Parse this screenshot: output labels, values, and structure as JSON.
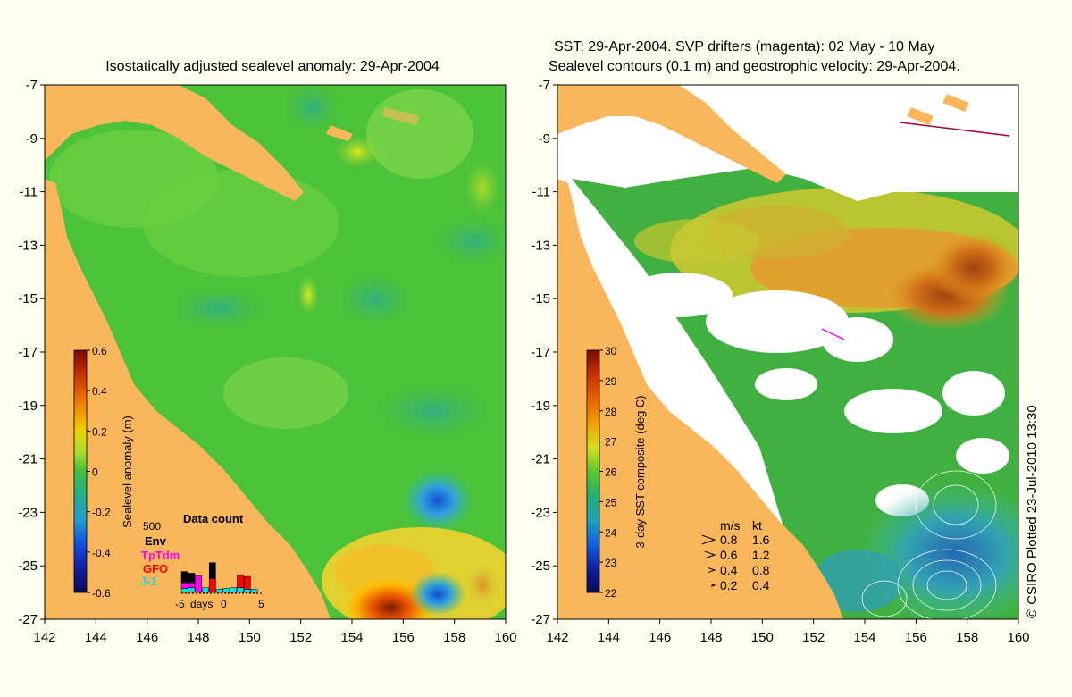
{
  "chart_data": [
    {
      "type": "heatmap",
      "title": "Isostatically adjusted sealevel anomaly: 29-Apr-2004",
      "x_ticks": [
        142,
        144,
        146,
        148,
        150,
        152,
        154,
        156,
        158,
        160
      ],
      "y_ticks": [
        -7,
        -9,
        -11,
        -13,
        -15,
        -17,
        -19,
        -21,
        -23,
        -25,
        -27
      ],
      "xlim": [
        142,
        160
      ],
      "ylim": [
        -27,
        -7
      ],
      "colorbar": {
        "label": "Sealevel anomaly (m)",
        "ticks": [
          "0.6",
          "0.4",
          "0.2",
          "0",
          "-0.2",
          "-0.4",
          "-0.6"
        ],
        "range": [
          -0.6,
          0.6
        ]
      },
      "data_count": {
        "title": "Data count",
        "max_label": "500",
        "series": [
          {
            "name": "Env",
            "color": "#000000"
          },
          {
            "name": "TpTdm",
            "color": "#ff00ff"
          },
          {
            "name": "GFO",
            "color": "#ff0000"
          },
          {
            "name": "J-1",
            "color": "#00e0e0"
          }
        ],
        "x_label": "days",
        "x_ticks": [
          "-5",
          "0",
          "5"
        ],
        "days": [
          -5,
          -4,
          -3,
          -2,
          -1,
          0,
          1,
          2,
          3,
          4,
          5
        ],
        "j1": [
          50,
          60,
          0,
          60,
          0,
          40,
          50,
          60,
          60,
          40,
          40
        ],
        "gfo": [
          0,
          0,
          0,
          0,
          170,
          0,
          0,
          0,
          160,
          160,
          0
        ],
        "tptdm": [
          70,
          60,
          210,
          0,
          0,
          0,
          0,
          0,
          0,
          0,
          0
        ],
        "env": [
          140,
          120,
          0,
          0,
          200,
          0,
          0,
          0,
          0,
          0,
          0
        ]
      }
    },
    {
      "type": "heatmap",
      "title_lines": [
        "SST: 29-Apr-2004. SVP drifters (magenta): 02 May - 10 May",
        "Sealevel contours (0.1 m) and geostrophic velocity: 29-Apr-2004."
      ],
      "x_ticks": [
        142,
        144,
        146,
        148,
        150,
        152,
        154,
        156,
        158,
        160
      ],
      "y_ticks": [
        -7,
        -9,
        -11,
        -13,
        -15,
        -17,
        -19,
        -21,
        -23,
        -25,
        -27
      ],
      "xlim": [
        142,
        160
      ],
      "ylim": [
        -27,
        -7
      ],
      "colorbar": {
        "label": "3-day SST composite (deg C)",
        "ticks": [
          "30",
          "29",
          "28",
          "27",
          "26",
          "25",
          "24",
          "23",
          "22"
        ],
        "range": [
          22,
          30
        ]
      },
      "velocity_legend": {
        "headers": [
          "m/s",
          "kt"
        ],
        "rows": [
          [
            "0.8",
            "1.6"
          ],
          [
            "0.6",
            "1.2"
          ],
          [
            "0.4",
            "0.8"
          ],
          [
            "0.2",
            "0.4"
          ]
        ]
      }
    }
  ],
  "credit": "© CSIRO Plotted 23-Jul-2010 13:30",
  "colors": {
    "land": "#fab65a",
    "background": "#fffff0",
    "sla_green": "#4cc23a",
    "sst_green": "#40b040"
  }
}
